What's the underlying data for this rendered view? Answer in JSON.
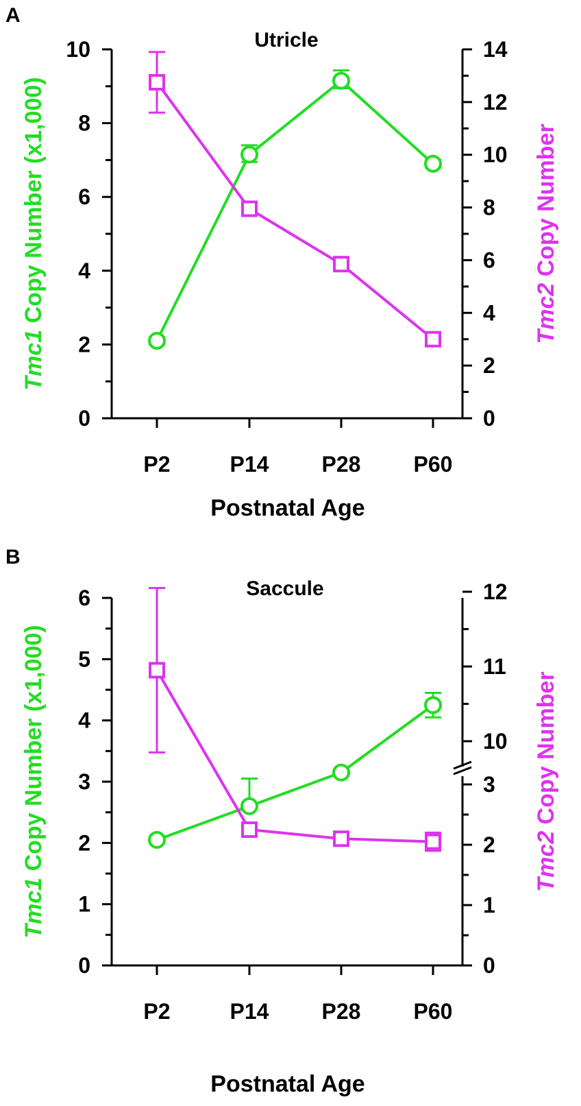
{
  "colors": {
    "tmc1": "#22dd22",
    "tmc2": "#dd33ee",
    "axis": "#000000"
  },
  "chart_data": [
    {
      "panel_label": "A",
      "type": "line",
      "title": "Utricle",
      "xlabel": "Postnatal Age",
      "categories": [
        "P2",
        "P14",
        "P28",
        "P60"
      ],
      "ylabel_left": {
        "italic": "Tmc1",
        "rest": " Copy Number (x1,000)"
      },
      "ylabel_right": {
        "italic": "Tmc2",
        "rest": " Copy Number"
      },
      "y_left": {
        "min": 0,
        "max": 10,
        "ticks": [
          0,
          2,
          4,
          6,
          8,
          10
        ],
        "minor_step": 1
      },
      "y_right": {
        "min": 0,
        "max": 14,
        "ticks": [
          0,
          2,
          4,
          6,
          8,
          10,
          12,
          14
        ],
        "minor_step": 1
      },
      "grid": false,
      "series": [
        {
          "name": "Tmc1",
          "axis": "left",
          "marker": "circle",
          "values": [
            2.1,
            7.15,
            9.15,
            6.9
          ],
          "err_up": [
            0.1,
            0.25,
            0.28,
            0.1
          ],
          "err_down": [
            0.1,
            0.2,
            0.2,
            0.1
          ]
        },
        {
          "name": "Tmc2",
          "axis": "right",
          "marker": "square",
          "values": [
            12.75,
            7.95,
            5.85,
            3.0
          ],
          "err_up": [
            1.15,
            0.15,
            0.2,
            0.15
          ],
          "err_down": [
            1.15,
            0.15,
            0.2,
            0.15
          ]
        }
      ]
    },
    {
      "panel_label": "B",
      "type": "line",
      "title": "Saccule",
      "xlabel": "Postnatal Age",
      "categories": [
        "P2",
        "P14",
        "P28",
        "P60"
      ],
      "ylabel_left": {
        "italic": "Tmc1",
        "rest": " Copy Number (x1,000)"
      },
      "ylabel_right": {
        "italic": "Tmc2",
        "rest": " Copy Number"
      },
      "y_left": {
        "min": 0,
        "max": 6,
        "ticks": [
          0,
          1,
          2,
          3,
          4,
          5,
          6
        ],
        "minor_step": 0.5
      },
      "y_right": {
        "min": 0,
        "max": 12,
        "broken": true,
        "tick_labels": [
          "0",
          "1",
          "2",
          "3",
          "10",
          "11",
          "12"
        ],
        "tick_values": [
          0,
          1,
          2,
          3,
          10,
          11,
          12
        ]
      },
      "grid": false,
      "series": [
        {
          "name": "Tmc1",
          "axis": "left",
          "marker": "circle",
          "values": [
            2.05,
            2.6,
            3.15,
            4.25
          ],
          "err_up": [
            0.05,
            0.45,
            0.05,
            0.2
          ],
          "err_down": [
            0.05,
            0.0,
            0.05,
            0.2
          ]
        },
        {
          "name": "Tmc2",
          "axis": "right",
          "marker": "square",
          "values": [
            10.95,
            2.25,
            2.1,
            2.05
          ],
          "err_up": [
            1.1,
            0.1,
            0.08,
            0.15
          ],
          "err_down": [
            1.1,
            0.1,
            0.08,
            0.15
          ]
        }
      ]
    }
  ]
}
